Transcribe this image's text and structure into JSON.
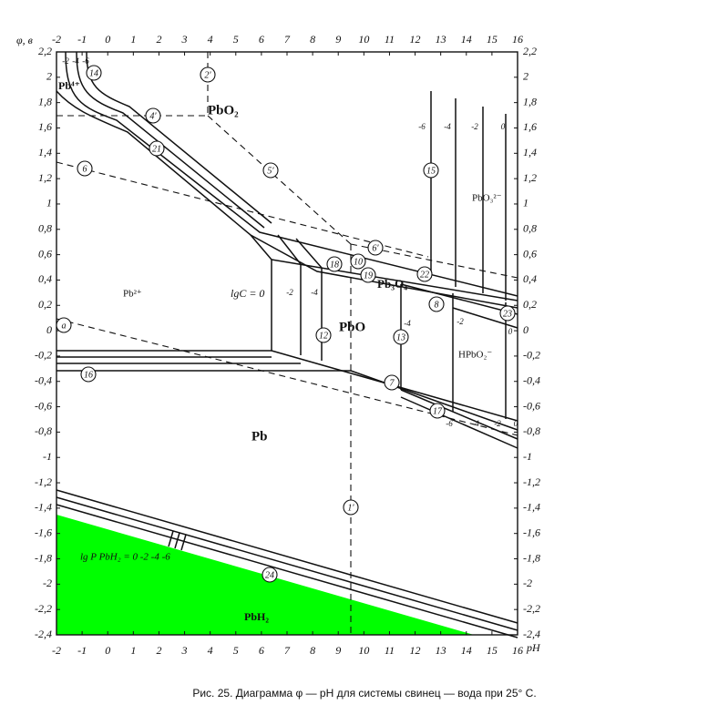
{
  "axes": {
    "y_label": "φ, в",
    "x_label": "pH",
    "x_ticks": [
      "-2",
      "-1",
      "0",
      "1",
      "2",
      "3",
      "4",
      "5",
      "6",
      "7",
      "8",
      "9",
      "10",
      "11",
      "12",
      "13",
      "14",
      "15",
      "16"
    ],
    "y_ticks": [
      "2,2",
      "2",
      "1,8",
      "1,6",
      "1,4",
      "1,2",
      "1",
      "0,8",
      "0,6",
      "0,4",
      "0,2",
      "0",
      "-0,2",
      "-0,4",
      "-0,6",
      "-0,8",
      "-1",
      "-1,2",
      "-1,4",
      "-1,6",
      "-1,8",
      "-2",
      "-2,2",
      "-2,4"
    ]
  },
  "regions": [
    "PbO₂",
    "Pb⁴⁺",
    "Pb²⁺",
    "lgC = 0",
    "PbO",
    "Pb₃O₄",
    "HPbO₂⁻",
    "PbO₃²⁻",
    "Pb",
    "PbH₂",
    "lg P PbH₂ = 0 -2 -4 -6"
  ],
  "markers": [
    "14",
    "2'",
    "4'",
    "21",
    "6",
    "5'",
    "15",
    "6'",
    "10",
    "18",
    "19",
    "22",
    "8",
    "23",
    "12",
    "13",
    "a",
    "16",
    "7",
    "17",
    "1'",
    "24"
  ],
  "line_labels": [
    "-2",
    "-4",
    "-6",
    "-2",
    "-4",
    "-4",
    "-2",
    "0",
    "-6",
    "-4",
    "-2",
    "0",
    "-6",
    "-4",
    "-2",
    "0"
  ],
  "caption": "Рис. 25. Диаграмма φ — pH для системы свинец — вода при 25° С."
}
